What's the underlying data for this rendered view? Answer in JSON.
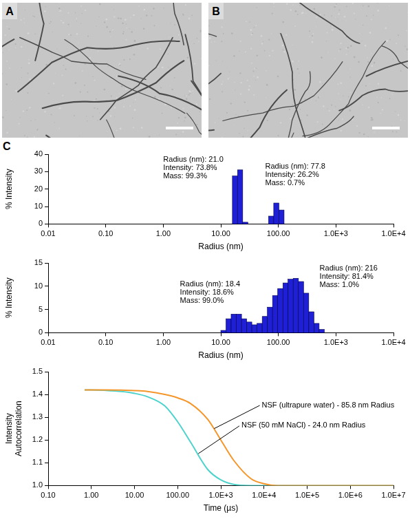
{
  "image_panels": [
    "A",
    "B"
  ],
  "chart_panel": "C",
  "chart_data": [
    {
      "type": "histogram",
      "x_label": "Radius (nm)",
      "y_label": "% Intensity",
      "log": "x",
      "grid": false,
      "color": "#1f1fd6",
      "bins": [
        15.9,
        19.5,
        24.0,
        29.5,
        36.3,
        44.6,
        54.9,
        67.5,
        83.0,
        102.1,
        125.6
      ],
      "values": [
        27.5,
        31,
        1,
        0,
        0,
        0,
        0,
        4.5,
        12,
        8
      ],
      "xlim": [
        0.01,
        10000
      ],
      "xticks": [
        0.01,
        {
          "value": 0.1,
          "label": "0.10"
        },
        {
          "value": 1,
          "label": "1.00"
        },
        {
          "value": 10,
          "label": "10.00"
        },
        {
          "value": 100,
          "label": "100.00"
        },
        {
          "value": 1000,
          "label": "1.0E+3"
        },
        {
          "value": 10000,
          "label": "1.0E+4"
        }
      ],
      "ylim": [
        0,
        40
      ],
      "yticks": [
        0,
        10,
        20,
        30,
        40
      ],
      "annotations": [
        {
          "text": [
            "Radius (nm): 21.0",
            "Intensity: 73.8%",
            "Mass: 99.3%"
          ],
          "x": 1,
          "y": 39
        },
        {
          "text": [
            "Radius (nm): 77.8",
            "Intensity: 26.2%",
            "Mass: 0.7%"
          ],
          "x": 59,
          "y": 35
        }
      ]
    },
    {
      "type": "histogram",
      "x_label": "Radius (nm)",
      "y_label": "% Intensity",
      "log": "x",
      "grid": false,
      "color": "#1f1fd6",
      "bins": [
        10.0,
        12.3,
        15.1,
        18.6,
        22.9,
        28.1,
        34.6,
        42.6,
        52.4,
        64.4,
        79.2,
        97.4,
        120,
        147,
        181,
        223,
        274,
        337,
        415,
        510,
        628
      ],
      "values": [
        0.5,
        3,
        4,
        4,
        3,
        2.3,
        1.7,
        2,
        3.5,
        5.5,
        8,
        9.5,
        10.7,
        11.5,
        11.7,
        11,
        8.5,
        4.5,
        2,
        0.7
      ],
      "xlim": [
        0.01,
        10000
      ],
      "xticks": [
        0.01,
        {
          "value": 0.1,
          "label": "0.10"
        },
        {
          "value": 1,
          "label": "1.00"
        },
        {
          "value": 10,
          "label": "10.00"
        },
        {
          "value": 100,
          "label": "100.00"
        },
        {
          "value": 1000,
          "label": "1.0E+3"
        },
        {
          "value": 10000,
          "label": "1.0E+4"
        }
      ],
      "ylim": [
        0,
        15
      ],
      "yticks": [
        0,
        5,
        10,
        15
      ],
      "annotations": [
        {
          "text": [
            "Radius (nm): 18.4",
            "Intensity: 18.6%",
            "Mass: 99.0%"
          ],
          "x": 1.95,
          "y": 11.3
        },
        {
          "text": [
            "Radius (nm): 216",
            "Intensity: 81.4%",
            "Mass: 1.0%"
          ],
          "x": 520,
          "y": 14.7
        }
      ]
    },
    {
      "type": "line",
      "x_label": "Time (µs)",
      "y_label": "Intensity Autocorrelation",
      "log": "x",
      "grid": false,
      "x": [
        0.7,
        1,
        2,
        5,
        10,
        20,
        50,
        100,
        200,
        500,
        1000,
        2000,
        5000,
        10000,
        20000,
        100000,
        1000000,
        10000000
      ],
      "series": [
        {
          "color": "#f5962a",
          "values": [
            1.42,
            1.42,
            1.42,
            1.419,
            1.417,
            1.413,
            1.4,
            1.385,
            1.36,
            1.29,
            1.2,
            1.11,
            1.03,
            1.008,
            1.0,
            1.0,
            1.0,
            1.0
          ]
        },
        {
          "color": "#4ed3cc",
          "values": [
            1.42,
            1.42,
            1.418,
            1.413,
            1.405,
            1.39,
            1.35,
            1.28,
            1.19,
            1.07,
            1.025,
            1.005,
            1.0,
            1.0,
            1.0,
            1.0,
            1.0,
            1.0
          ]
        }
      ],
      "xlim": [
        0.1,
        10000000
      ],
      "xticks": [
        {
          "value": 0.1,
          "label": "0.10"
        },
        {
          "value": 1,
          "label": "1.00"
        },
        {
          "value": 10,
          "label": "10.00"
        },
        {
          "value": 100,
          "label": "100.00"
        },
        {
          "value": 1000,
          "label": "1.0E+3"
        },
        {
          "value": 10000,
          "label": "1.0E+4"
        },
        {
          "value": 100000,
          "label": "1.0E+5"
        },
        {
          "value": 1000000,
          "label": "1.0E+6"
        },
        {
          "value": 10000000,
          "label": "1.0E+7"
        }
      ],
      "ylim": [
        1.0,
        1.5
      ],
      "yticks": [
        {
          "value": 1,
          "label": "1.0"
        },
        1.1,
        1.2,
        1.3,
        1.4,
        1.5
      ],
      "annotations": [
        {
          "text": "NSF (ultrapure water) - 85.8 nm Radius",
          "x": 8900,
          "y": 1.37,
          "arrow_to": [
            700,
            1.25
          ]
        },
        {
          "text": "NSF (50 mM NaCl) - 24.0 nm Radius",
          "x": 3000,
          "y": 1.28,
          "arrow_to": [
            300,
            1.14
          ]
        }
      ]
    }
  ]
}
